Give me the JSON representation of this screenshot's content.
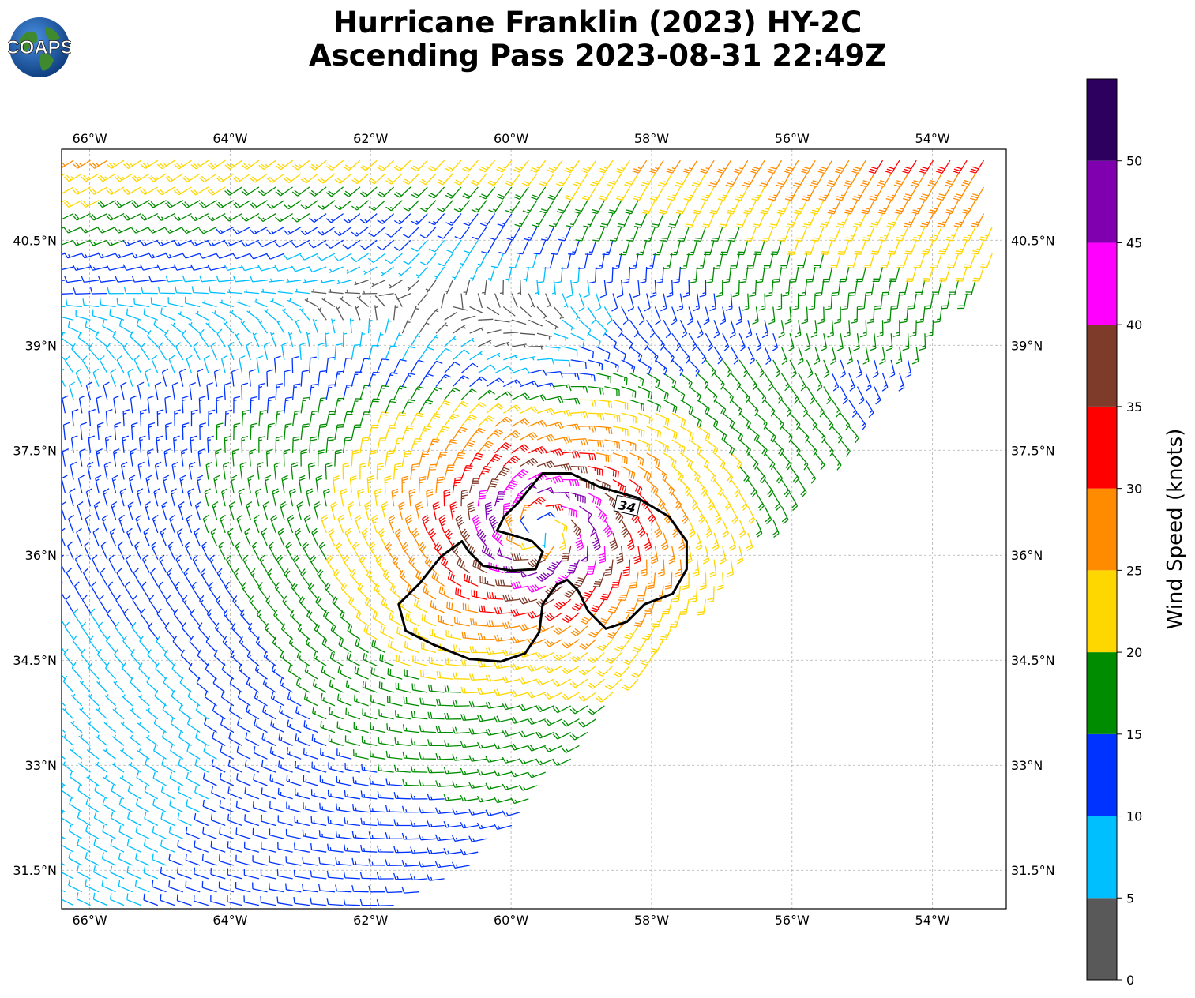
{
  "title": {
    "line1": "Hurricane Franklin (2023) HY-2C",
    "line2": "Ascending Pass 2023-08-31 22:49Z"
  },
  "logo": {
    "text": "COAPS",
    "icon": "globe-logo-icon"
  },
  "map": {
    "lon_range": [
      -66.4,
      -52.95
    ],
    "lat_range": [
      30.95,
      41.8
    ],
    "lon_ticks": [
      {
        "value": -66,
        "label": "66°W"
      },
      {
        "value": -64,
        "label": "64°W"
      },
      {
        "value": -62,
        "label": "62°W"
      },
      {
        "value": -60,
        "label": "60°W"
      },
      {
        "value": -58,
        "label": "58°W"
      },
      {
        "value": -56,
        "label": "56°W"
      },
      {
        "value": -54,
        "label": "54°W"
      }
    ],
    "lat_ticks": [
      {
        "value": 31.5,
        "label": "31.5°N"
      },
      {
        "value": 33,
        "label": "33°N"
      },
      {
        "value": 34.5,
        "label": "34.5°N"
      },
      {
        "value": 36,
        "label": "36°N"
      },
      {
        "value": 37.5,
        "label": "37.5°N"
      },
      {
        "value": 39,
        "label": "39°N"
      },
      {
        "value": 40.5,
        "label": "40.5°N"
      }
    ],
    "gridlines": true,
    "storm_center": {
      "lon": -59.6,
      "lat": 36.35
    },
    "contour": {
      "label": "34",
      "points": [
        [
          -59.55,
          37.17
        ],
        [
          -59.15,
          37.17
        ],
        [
          -58.75,
          36.98
        ],
        [
          -58.2,
          36.82
        ],
        [
          -57.75,
          36.55
        ],
        [
          -57.5,
          36.2
        ],
        [
          -57.5,
          35.8
        ],
        [
          -57.7,
          35.45
        ],
        [
          -58.1,
          35.3
        ],
        [
          -58.35,
          35.05
        ],
        [
          -58.65,
          34.95
        ],
        [
          -58.9,
          35.2
        ],
        [
          -59.05,
          35.5
        ],
        [
          -59.2,
          35.65
        ],
        [
          -59.35,
          35.58
        ],
        [
          -59.55,
          35.3
        ],
        [
          -59.6,
          34.9
        ],
        [
          -59.8,
          34.6
        ],
        [
          -60.15,
          34.48
        ],
        [
          -60.6,
          34.52
        ],
        [
          -61.1,
          34.72
        ],
        [
          -61.5,
          34.92
        ],
        [
          -61.6,
          35.3
        ],
        [
          -61.3,
          35.6
        ],
        [
          -61.0,
          35.98
        ],
        [
          -60.7,
          36.2
        ],
        [
          -60.6,
          36.05
        ],
        [
          -60.4,
          35.85
        ],
        [
          -60.0,
          35.78
        ],
        [
          -59.65,
          35.8
        ],
        [
          -59.55,
          36.05
        ],
        [
          -59.7,
          36.2
        ],
        [
          -59.95,
          36.28
        ],
        [
          -60.2,
          36.35
        ],
        [
          -60.1,
          36.55
        ],
        [
          -59.9,
          36.75
        ],
        [
          -59.7,
          37.0
        ]
      ]
    },
    "swath": {
      "polygon": [
        [
          -66.4,
          41.8
        ],
        [
          -53.3,
          41.8
        ],
        [
          -53.0,
          40.3
        ],
        [
          -60.5,
          31.5
        ],
        [
          -61.6,
          30.95
        ],
        [
          -66.4,
          30.95
        ]
      ]
    },
    "wind_field": {
      "units": "knots",
      "speed_color_bins": [
        5,
        10,
        15,
        20,
        25,
        30,
        35,
        40,
        45,
        50
      ]
    }
  },
  "colorbar": {
    "label": "Wind Speed (knots)",
    "range": [
      0,
      55
    ],
    "ticks": [
      "0",
      "5",
      "10",
      "15",
      "20",
      "25",
      "30",
      "35",
      "40",
      "45",
      "50"
    ],
    "colors": [
      "#595959",
      "#00bfff",
      "#0033ff",
      "#008c00",
      "#ffd700",
      "#ff8c00",
      "#ff0000",
      "#7f3b2a",
      "#ff00ff",
      "#8000b0",
      "#2d0060"
    ]
  }
}
